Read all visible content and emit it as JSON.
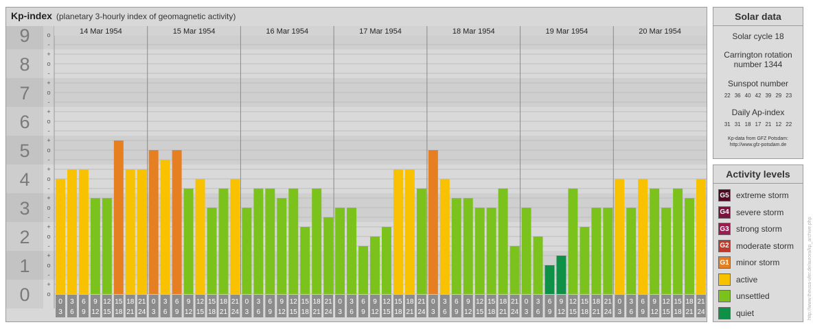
{
  "header": {
    "title": "Kp-index",
    "subtitle": "(planetary 3-hourly index of geomagnetic activity)"
  },
  "chart_data": {
    "type": "bar",
    "title": "Kp-index",
    "subtitle": "(planetary 3-hourly index of geomagnetic activity)",
    "ylim": [
      0,
      9
    ],
    "y_ticks": [
      "0",
      "1",
      "2",
      "3",
      "4",
      "5",
      "6",
      "7",
      "8",
      "9"
    ],
    "minor_tick_labels": [
      "o",
      "+",
      "-"
    ],
    "days": [
      "14 Mar 1954",
      "15 Mar 1954",
      "16 Mar 1954",
      "17 Mar 1954",
      "18 Mar 1954",
      "19 Mar 1954",
      "20 Mar 1954"
    ],
    "hour_ticks_top": [
      "0",
      "3",
      "6",
      "9",
      "12",
      "15",
      "18",
      "21"
    ],
    "hour_ticks_bottom": [
      "3",
      "6",
      "9",
      "12",
      "15",
      "18",
      "21",
      "24"
    ],
    "values": [
      [
        4.0,
        4.333,
        4.333,
        3.333,
        3.333,
        5.333,
        4.333,
        4.333
      ],
      [
        5.0,
        4.667,
        5.0,
        3.667,
        4.0,
        3.0,
        3.667,
        4.0
      ],
      [
        3.0,
        3.667,
        3.667,
        3.333,
        3.667,
        2.333,
        3.667,
        2.667
      ],
      [
        3.0,
        3.0,
        1.667,
        2.0,
        2.333,
        4.333,
        4.333,
        3.667
      ],
      [
        5.0,
        4.0,
        3.333,
        3.333,
        3.0,
        3.0,
        3.667,
        1.667
      ],
      [
        3.0,
        2.0,
        1.0,
        1.333,
        3.667,
        2.333,
        3.0,
        3.0
      ],
      [
        4.0,
        3.0,
        4.0,
        3.667,
        3.0,
        3.667,
        3.333,
        4.0
      ]
    ],
    "level_colors": {
      "quiet": "#0e9146",
      "unsettled": "#7cc21d",
      "active": "#f8c200",
      "minor_storm": "#e67e22",
      "moderate_storm": "#c0392b",
      "strong_storm": "#9b1a4f",
      "severe_storm": "#7a1240",
      "extreme_storm": "#4d0a22"
    },
    "grid": true,
    "legend_position": "right"
  },
  "solar_data": {
    "title": "Solar data",
    "solar_cycle": "Solar cycle 18",
    "carrington_line1": "Carrington rotation",
    "carrington_line2": "number 1344",
    "sunspot_label": "Sunspot number",
    "sunspot_values": [
      "22",
      "36",
      "40",
      "42",
      "39",
      "29",
      "23"
    ],
    "ap_label": "Daily Ap-index",
    "ap_values": [
      "31",
      "31",
      "18",
      "17",
      "21",
      "12",
      "22"
    ],
    "source_line1": "Kp-data from GFZ Potsdam:",
    "source_line2": "http://www.gfz-potsdam.de"
  },
  "activity_levels": {
    "title": "Activity levels",
    "items": [
      {
        "code": "G5",
        "label": "extreme storm",
        "color": "#4d0a22"
      },
      {
        "code": "G4",
        "label": "severe storm",
        "color": "#7a1240"
      },
      {
        "code": "G3",
        "label": "strong storm",
        "color": "#9b1a4f"
      },
      {
        "code": "G2",
        "label": "moderate storm",
        "color": "#c0392b"
      },
      {
        "code": "G1",
        "label": "minor storm",
        "color": "#e67e22"
      },
      {
        "code": "",
        "label": "active",
        "color": "#f8c200"
      },
      {
        "code": "",
        "label": "unsettled",
        "color": "#7cc21d"
      },
      {
        "code": "",
        "label": "quiet",
        "color": "#0e9146"
      }
    ]
  },
  "credit": "http://www.theusa-ufer.de/aurora/kp_archive.php"
}
